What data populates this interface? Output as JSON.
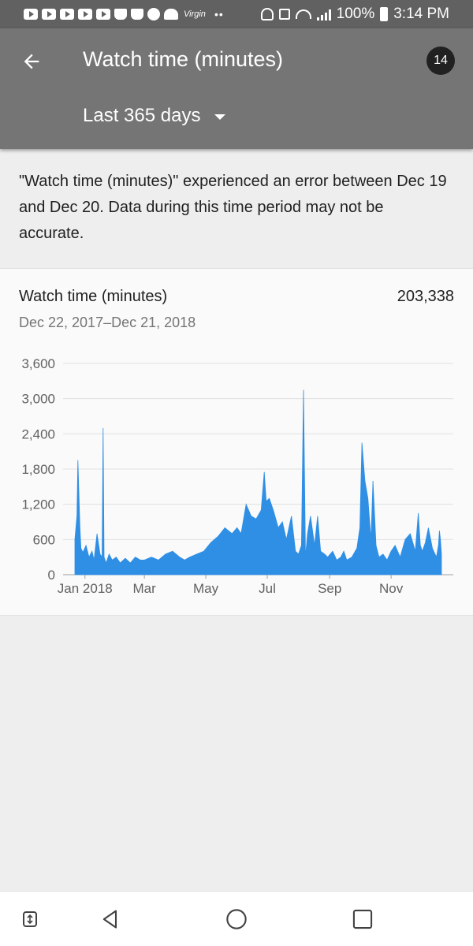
{
  "status_bar": {
    "carrier_mark": "Virgin",
    "battery": "100%",
    "time": "3:14 PM",
    "icons": [
      "youtube-icon",
      "youtube-icon",
      "youtube-icon",
      "youtube-icon",
      "youtube-icon",
      "hat-icon",
      "hat-icon",
      "chrome-icon",
      "heart-icon",
      "headphones-icon",
      "mute-icon",
      "wifi-icon",
      "signal-icon",
      "battery-icon"
    ]
  },
  "app_bar": {
    "title": "Watch time (minutes)",
    "badge": "14",
    "range_label": "Last 365 days"
  },
  "error_message": "\"Watch time (minutes)\" experienced an error between Dec 19 and Dec 20. Data during this time period may not be accurate.",
  "card": {
    "title": "Watch time (minutes)",
    "total": "203,338",
    "date_range": "Dec 22, 2017–Dec 21, 2018"
  },
  "colors": {
    "series": "#2f8fe5",
    "app_bar": "#757575",
    "status_bar": "#616161"
  },
  "chart_data": {
    "type": "area",
    "ylim": [
      0,
      3600
    ],
    "y_ticks": [
      0,
      600,
      1200,
      1800,
      2400,
      3000,
      3600
    ],
    "y_tick_labels": [
      "0",
      "600",
      "1,200",
      "1,800",
      "2,400",
      "3,000",
      "3,600"
    ],
    "x_ticks": [
      {
        "label": "Jan 2018",
        "date": "2018-01-01"
      },
      {
        "label": "Mar",
        "date": "2018-03-01"
      },
      {
        "label": "May",
        "date": "2018-05-01"
      },
      {
        "label": "Jul",
        "date": "2018-07-01"
      },
      {
        "label": "Sep",
        "date": "2018-09-01"
      },
      {
        "label": "Nov",
        "date": "2018-11-01"
      }
    ],
    "x_range": [
      "2017-12-22",
      "2018-12-21"
    ],
    "grid": true,
    "series": [
      {
        "x": [
          "2017-12-22",
          "2017-12-24",
          "2017-12-25",
          "2017-12-27",
          "2017-12-28",
          "2017-12-30",
          "2018-01-02",
          "2018-01-05",
          "2018-01-08",
          "2018-01-10",
          "2018-01-13",
          "2018-01-16",
          "2018-01-18",
          "2018-01-19",
          "2018-01-20",
          "2018-01-22",
          "2018-01-25",
          "2018-01-28",
          "2018-02-01",
          "2018-02-05",
          "2018-02-10",
          "2018-02-15",
          "2018-02-20",
          "2018-02-25",
          "2018-03-01",
          "2018-03-08",
          "2018-03-15",
          "2018-03-22",
          "2018-03-29",
          "2018-04-05",
          "2018-04-10",
          "2018-04-15",
          "2018-04-22",
          "2018-04-29",
          "2018-05-06",
          "2018-05-13",
          "2018-05-20",
          "2018-05-27",
          "2018-06-01",
          "2018-06-05",
          "2018-06-10",
          "2018-06-15",
          "2018-06-20",
          "2018-06-25",
          "2018-06-28",
          "2018-06-30",
          "2018-07-03",
          "2018-07-07",
          "2018-07-12",
          "2018-07-16",
          "2018-07-20",
          "2018-07-25",
          "2018-07-29",
          "2018-08-01",
          "2018-08-04",
          "2018-08-06",
          "2018-08-08",
          "2018-08-10",
          "2018-08-13",
          "2018-08-17",
          "2018-08-20",
          "2018-08-23",
          "2018-08-27",
          "2018-08-30",
          "2018-09-04",
          "2018-09-08",
          "2018-09-12",
          "2018-09-15",
          "2018-09-18",
          "2018-09-23",
          "2018-09-28",
          "2018-10-01",
          "2018-10-03",
          "2018-10-06",
          "2018-10-09",
          "2018-10-12",
          "2018-10-14",
          "2018-10-17",
          "2018-10-20",
          "2018-10-24",
          "2018-10-28",
          "2018-11-01",
          "2018-11-05",
          "2018-11-10",
          "2018-11-15",
          "2018-11-20",
          "2018-11-25",
          "2018-11-28",
          "2018-11-30",
          "2018-12-02",
          "2018-12-05",
          "2018-12-08",
          "2018-12-12",
          "2018-12-16",
          "2018-12-18",
          "2018-12-19",
          "2018-12-20",
          "2018-12-21"
        ],
        "y": [
          600,
          1000,
          1950,
          800,
          450,
          380,
          500,
          300,
          400,
          250,
          700,
          350,
          300,
          2500,
          300,
          200,
          350,
          250,
          300,
          200,
          280,
          200,
          300,
          250,
          250,
          300,
          250,
          350,
          400,
          300,
          250,
          300,
          350,
          400,
          550,
          650,
          800,
          700,
          800,
          700,
          1200,
          1000,
          950,
          1100,
          1750,
          1250,
          1300,
          1100,
          800,
          900,
          600,
          1000,
          400,
          350,
          500,
          3150,
          300,
          700,
          1000,
          500,
          1000,
          400,
          350,
          300,
          400,
          250,
          300,
          400,
          250,
          300,
          450,
          800,
          2250,
          1600,
          1300,
          600,
          1600,
          500,
          300,
          350,
          250,
          400,
          500,
          300,
          600,
          700,
          400,
          1050,
          500,
          400,
          550,
          800,
          450,
          300,
          500,
          750,
          600,
          350
        ]
      }
    ]
  },
  "nav": {
    "icons": [
      "screen-pin-icon",
      "back-icon",
      "home-icon",
      "recents-icon"
    ]
  }
}
